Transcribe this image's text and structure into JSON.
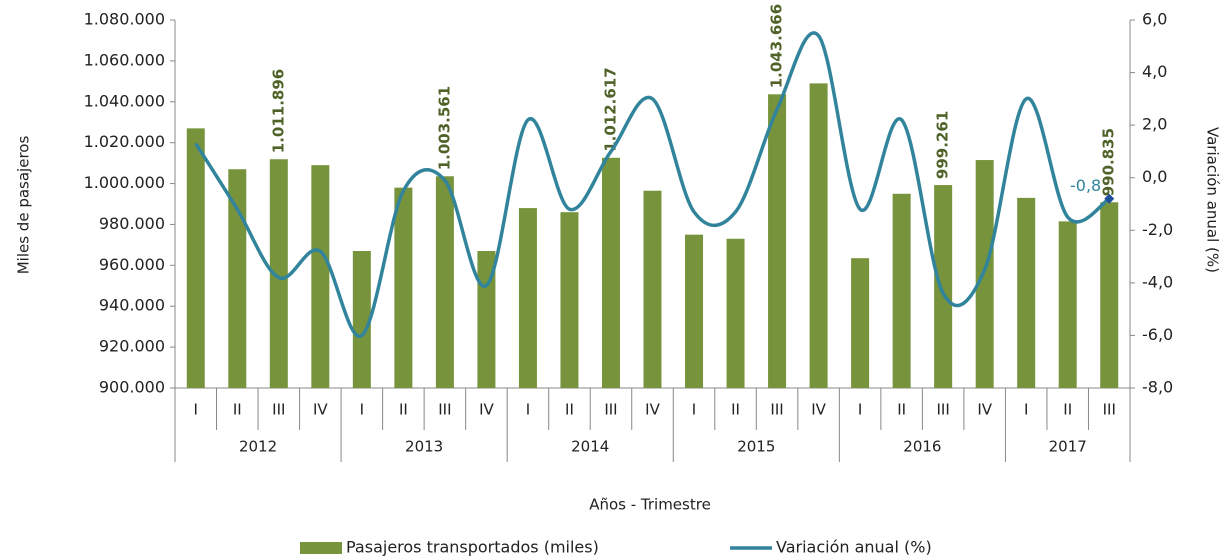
{
  "chart_data": {
    "type": "bar-line",
    "xlabel": "Años - Trimestre",
    "ylabel": "Miles de pasajeros",
    "y2label": "Variación anual (%)",
    "groups": [
      {
        "name": "2012",
        "categories": [
          "I",
          "II",
          "III",
          "IV"
        ]
      },
      {
        "name": "2013",
        "categories": [
          "I",
          "II",
          "III",
          "IV"
        ]
      },
      {
        "name": "2014",
        "categories": [
          "I",
          "II",
          "III",
          "IV"
        ]
      },
      {
        "name": "2015",
        "categories": [
          "I",
          "II",
          "III",
          "IV"
        ]
      },
      {
        "name": "2016",
        "categories": [
          "I",
          "II",
          "III",
          "IV"
        ]
      },
      {
        "name": "2017",
        "categories": [
          "I",
          "II",
          "III"
        ]
      }
    ],
    "series": [
      {
        "name": "Pasajeros transportados (miles)",
        "type": "bar",
        "color": "#77933c",
        "label_color": "#4f6228",
        "values": [
          1027000,
          1007000,
          1011896,
          1009000,
          967000,
          998000,
          1003561,
          967000,
          988000,
          986000,
          1012617,
          996500,
          975000,
          973000,
          1043666,
          1049000,
          963500,
          995000,
          999261,
          1011500,
          993000,
          981500,
          990835
        ],
        "value_labels": [
          null,
          null,
          "1.011.896",
          null,
          null,
          null,
          "1.003.561",
          null,
          null,
          null,
          "1.012.617",
          null,
          null,
          null,
          "1.043.666",
          null,
          null,
          null,
          "999.261",
          null,
          null,
          null,
          "990.835"
        ]
      },
      {
        "name": "Variación anual (%)",
        "type": "line",
        "axis": "y2",
        "color": "#31849b",
        "marker_color": "#1f4e9b",
        "values": [
          1.3,
          -1.2,
          -3.8,
          -2.8,
          -6.0,
          -0.5,
          -0.1,
          -4.1,
          2.2,
          -1.2,
          1.0,
          3.0,
          -1.3,
          -1.3,
          2.6,
          5.4,
          -1.2,
          2.2,
          -4.4,
          -3.5,
          3.0,
          -1.5,
          -0.8
        ],
        "value_labels": [
          null,
          null,
          null,
          null,
          null,
          null,
          null,
          null,
          null,
          null,
          null,
          null,
          null,
          null,
          null,
          null,
          null,
          null,
          null,
          null,
          null,
          null,
          "-0,8"
        ]
      }
    ],
    "ylim": [
      900000,
      1080000
    ],
    "yticks": [
      {
        "value": 900000,
        "label": "900.000"
      },
      {
        "value": 920000,
        "label": "920.000"
      },
      {
        "value": 940000,
        "label": "940.000"
      },
      {
        "value": 960000,
        "label": "960.000"
      },
      {
        "value": 980000,
        "label": "980.000"
      },
      {
        "value": 1000000,
        "label": "1.000.000"
      },
      {
        "value": 1020000,
        "label": "1.020.000"
      },
      {
        "value": 1040000,
        "label": "1.040.000"
      },
      {
        "value": 1060000,
        "label": "1.060.000"
      },
      {
        "value": 1080000,
        "label": "1.080.000"
      }
    ],
    "y2lim": [
      -8,
      6
    ],
    "y2ticks": [
      {
        "value": -8,
        "label": "-8,0"
      },
      {
        "value": -6,
        "label": "-6,0"
      },
      {
        "value": -4,
        "label": "-4,0"
      },
      {
        "value": -2,
        "label": "-2,0"
      },
      {
        "value": 0,
        "label": "0,0"
      },
      {
        "value": 2,
        "label": "2,0"
      },
      {
        "value": 4,
        "label": "4,0"
      },
      {
        "value": 6,
        "label": "6,0"
      }
    ],
    "legend": "bottom"
  }
}
